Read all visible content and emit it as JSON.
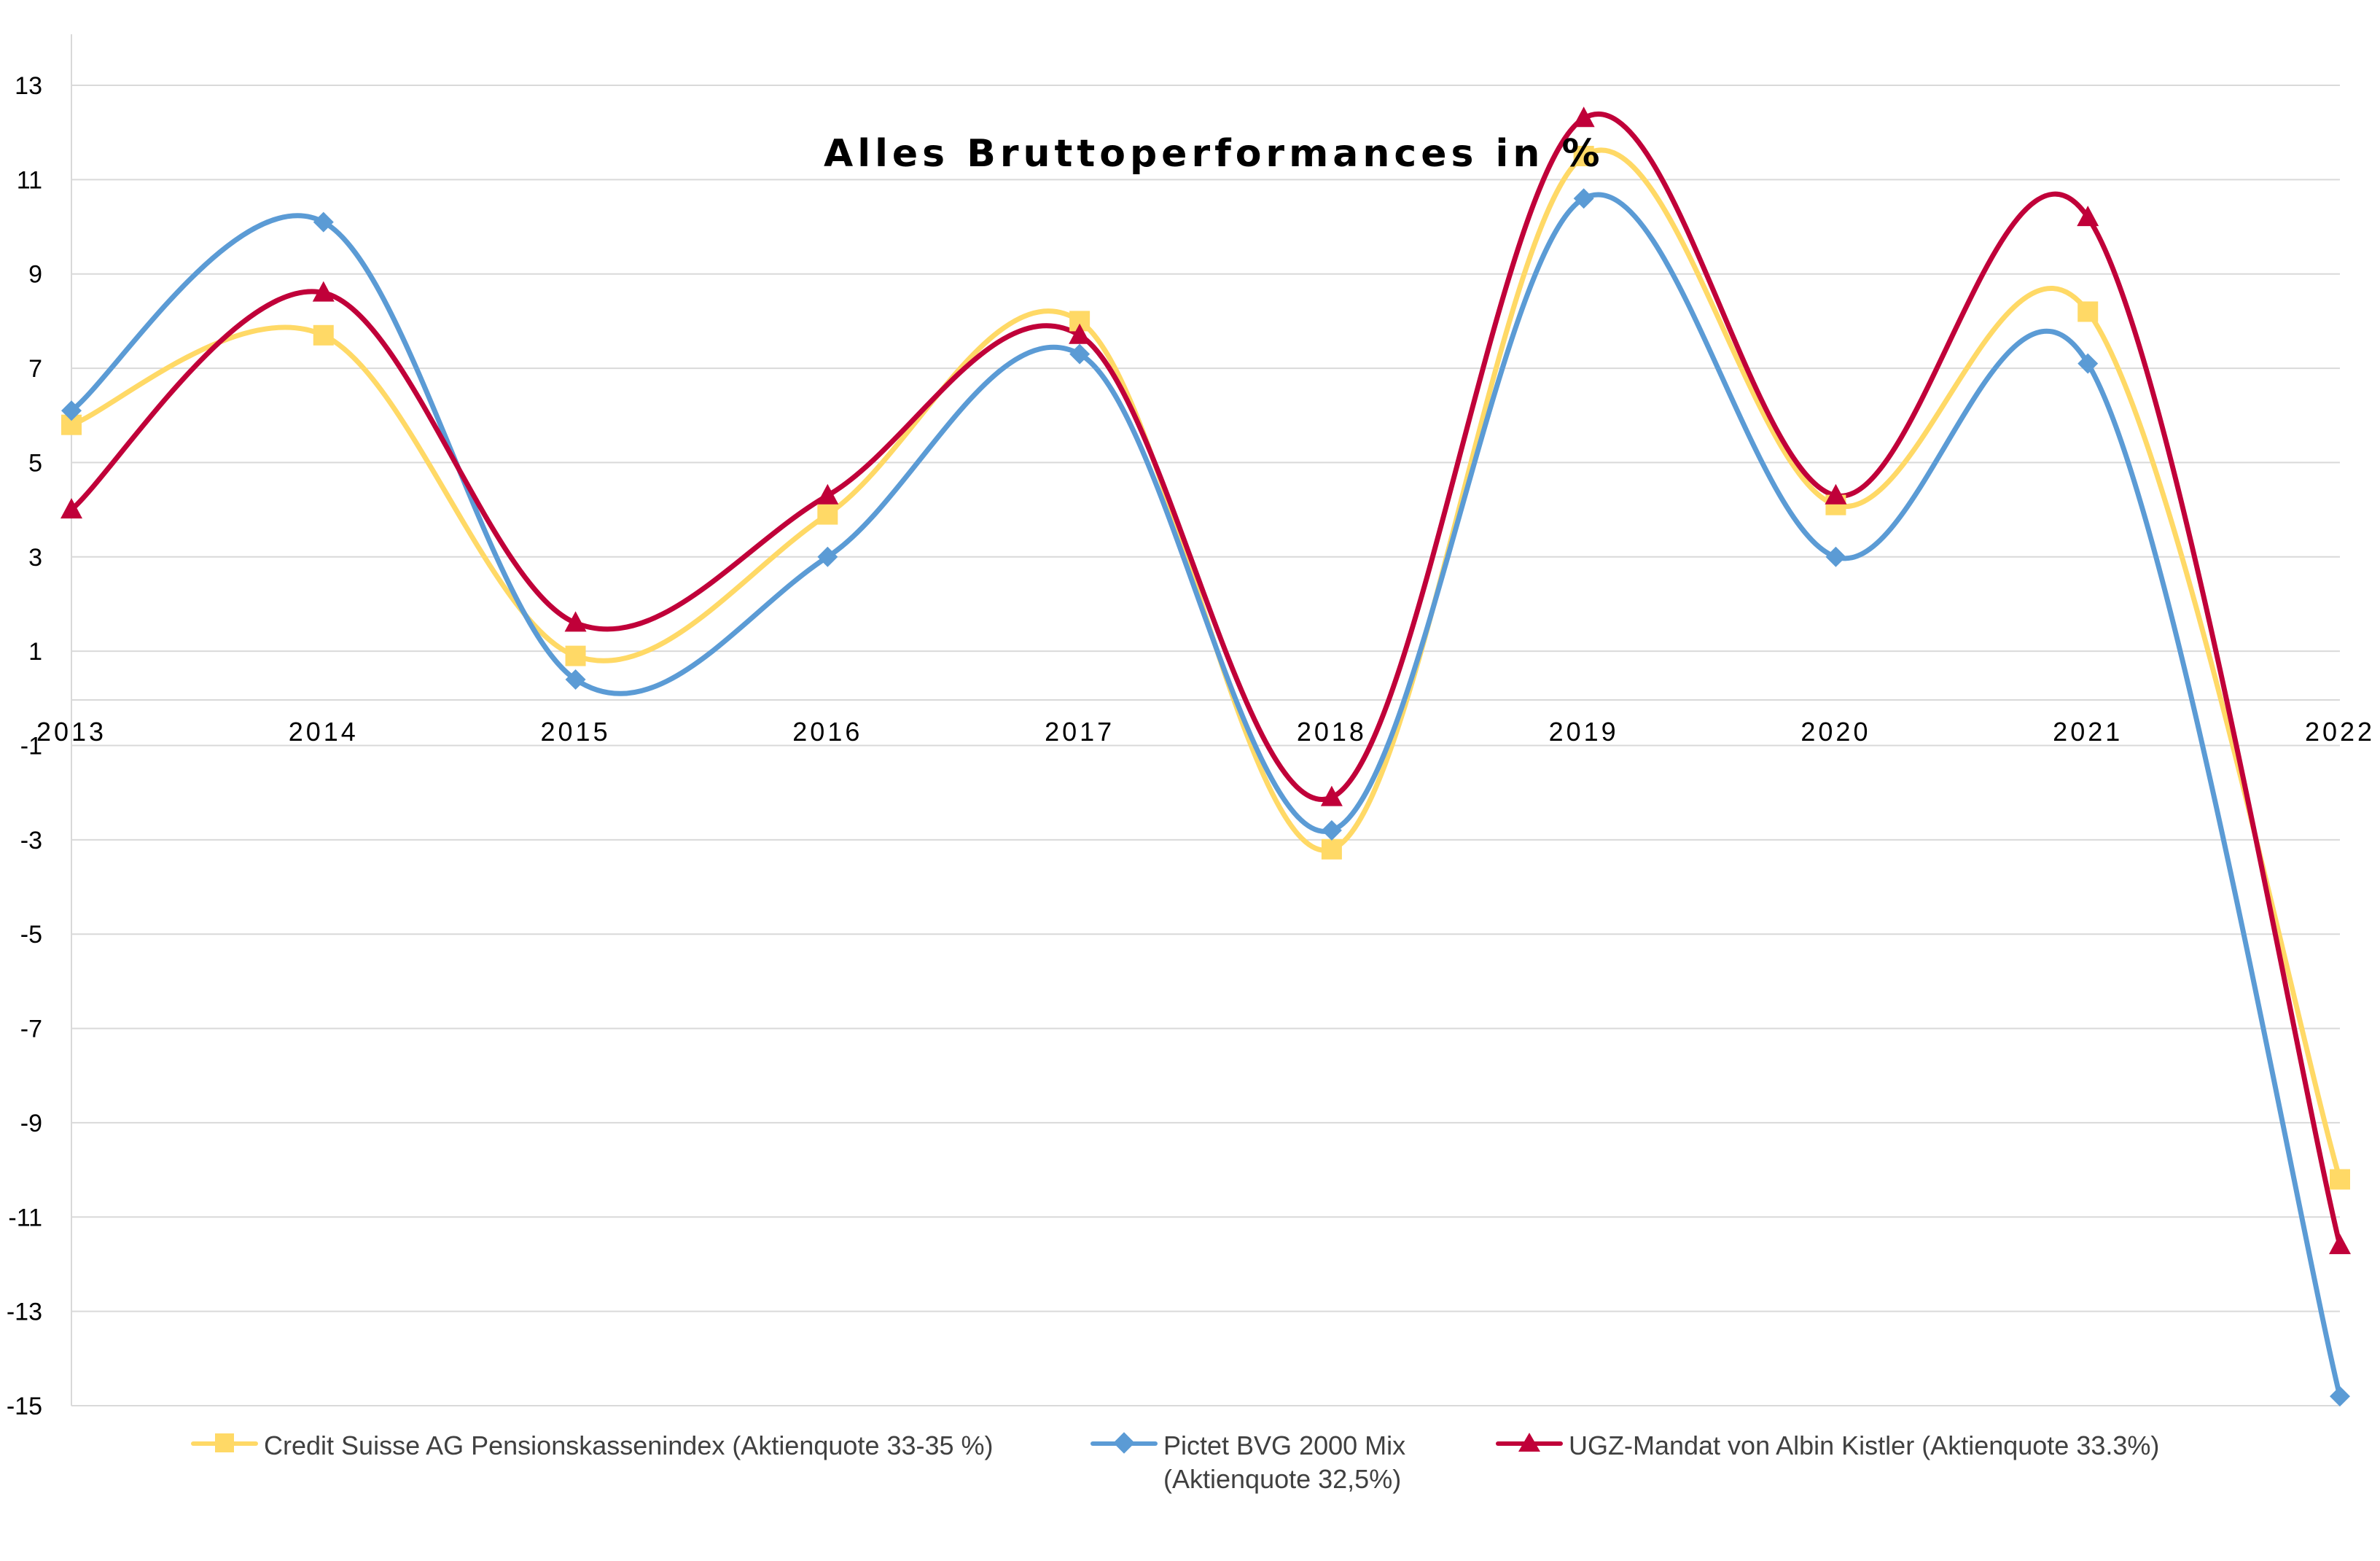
{
  "chart_data": {
    "type": "line",
    "title": "Alles Bruttoperformances in %",
    "categories": [
      "2013",
      "2014",
      "2015",
      "2016",
      "2017",
      "2018",
      "2019",
      "2020",
      "2021",
      "2022"
    ],
    "y_ticks": [
      "13",
      "11",
      "9",
      "7",
      "5",
      "3",
      "1",
      "-1",
      "-3",
      "-5",
      "-7",
      "-9",
      "-11",
      "-13",
      "-15"
    ],
    "ylim": [
      -15,
      13
    ],
    "grid": true,
    "legend_position": "bottom",
    "series": [
      {
        "name": "Credit Suisse AG Pensionskassenindex (Aktienquote 33-35 %)",
        "color": "#FFD966",
        "marker": "square",
        "values": [
          5.8,
          7.7,
          0.9,
          3.9,
          8.0,
          -3.2,
          11.5,
          4.1,
          8.2,
          -10.2
        ]
      },
      {
        "name": "Pictet BVG 2000 Mix\n(Aktienquote 32,5%)",
        "color": "#5B9BD5",
        "marker": "diamond",
        "values": [
          6.1,
          10.1,
          0.4,
          3.0,
          7.3,
          -2.8,
          10.6,
          3.0,
          7.1,
          -14.8
        ]
      },
      {
        "name": "UGZ-Mandat von Albin Kistler (Aktienquote 33.3%)",
        "color": "#C00039",
        "marker": "triangle",
        "values": [
          4.0,
          8.6,
          1.6,
          4.3,
          7.7,
          -2.1,
          12.3,
          4.3,
          10.2,
          -11.6
        ]
      }
    ]
  }
}
